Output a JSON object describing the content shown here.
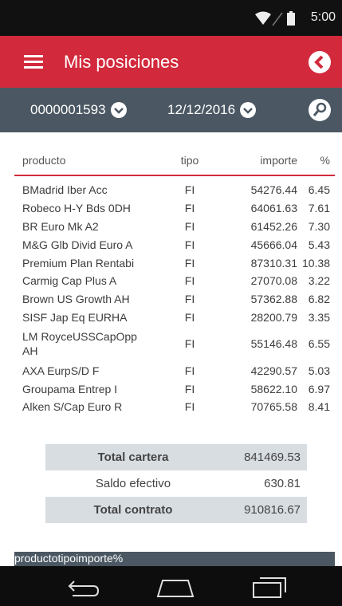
{
  "status_bar": {
    "time": "5:00"
  },
  "app_bar": {
    "title": "Mis posiciones"
  },
  "filters": {
    "account": "0000001593",
    "date": "12/12/2016"
  },
  "table": {
    "columns": [
      "producto",
      "tipo",
      "importe",
      "%"
    ],
    "rows": [
      [
        "BMadrid Iber Acc",
        "FI",
        "54276.44",
        "6.45"
      ],
      [
        "Robeco H-Y Bds 0DH",
        "FI",
        "64061.63",
        "7.61"
      ],
      [
        "BR Euro Mk A2",
        "FI",
        "61452.26",
        "7.30"
      ],
      [
        "M&G Glb Divid Euro A",
        "FI",
        "45666.04",
        "5.43"
      ],
      [
        "Premium Plan Rentabi",
        "FI",
        "87310.31",
        "10.38"
      ],
      [
        "Carmig Cap Plus A",
        "FI",
        "27070.08",
        "3.22"
      ],
      [
        "Brown US Growth AH",
        "FI",
        "57362.88",
        "6.82"
      ],
      [
        "SISF Jap Eq EURHA",
        "FI",
        "28200.79",
        "3.35"
      ],
      [
        "LM RoyceUSSCapOpp AH",
        "FI",
        "55146.48",
        "6.55"
      ],
      [
        "AXA EurpS/D F",
        "FI",
        "42290.57",
        "5.03"
      ],
      [
        "Groupama Entrep I",
        "FI",
        "58622.10",
        "6.97"
      ],
      [
        "Alken S/Cap Euro R",
        "FI",
        "70765.58",
        "8.41"
      ]
    ]
  },
  "totals": [
    {
      "label": "Total cartera",
      "value": "841469.53"
    },
    {
      "label": "Saldo efectivo",
      "value": "630.81"
    },
    {
      "label": "Total contrato",
      "value": "910816.67"
    }
  ],
  "next_table": {
    "columns": [
      "producto",
      "tipo",
      "importe",
      "%"
    ]
  }
}
